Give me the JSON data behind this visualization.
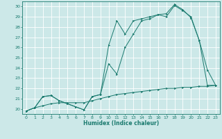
{
  "title": "",
  "xlabel": "Humidex (Indice chaleur)",
  "ylabel": "",
  "bg_color": "#cce8e8",
  "line_color": "#1a7a6e",
  "grid_color": "#ffffff",
  "xlim": [
    -0.5,
    23.5
  ],
  "ylim": [
    19.5,
    30.5
  ],
  "xticks": [
    0,
    1,
    2,
    3,
    4,
    5,
    6,
    7,
    8,
    9,
    10,
    11,
    12,
    13,
    14,
    15,
    16,
    17,
    18,
    19,
    20,
    21,
    22,
    23
  ],
  "yticks": [
    20,
    21,
    22,
    23,
    24,
    25,
    26,
    27,
    28,
    29,
    30
  ],
  "series1": {
    "x": [
      0,
      1,
      2,
      3,
      4,
      5,
      6,
      7,
      8,
      9,
      10,
      11,
      12,
      13,
      14,
      15,
      16,
      17,
      18,
      19,
      20,
      21,
      22,
      23
    ],
    "y": [
      19.8,
      20.1,
      21.2,
      21.3,
      20.8,
      20.5,
      20.2,
      19.9,
      21.2,
      21.4,
      26.2,
      28.6,
      27.3,
      28.6,
      28.8,
      29.0,
      29.2,
      29.0,
      30.1,
      29.6,
      29.0,
      26.7,
      23.8,
      22.3
    ]
  },
  "series2": {
    "x": [
      0,
      1,
      2,
      3,
      4,
      5,
      6,
      7,
      8,
      9,
      10,
      11,
      12,
      13,
      14,
      15,
      16,
      17,
      18,
      19,
      20,
      21,
      22,
      23
    ],
    "y": [
      19.8,
      20.1,
      21.2,
      21.3,
      20.8,
      20.5,
      20.2,
      19.9,
      21.2,
      21.4,
      24.4,
      23.4,
      26.0,
      27.3,
      28.6,
      28.8,
      29.2,
      29.3,
      30.2,
      29.7,
      28.9,
      26.7,
      22.3,
      22.3
    ]
  },
  "series3": {
    "x": [
      0,
      1,
      2,
      3,
      4,
      5,
      6,
      7,
      8,
      9,
      10,
      11,
      12,
      13,
      14,
      15,
      16,
      17,
      18,
      19,
      20,
      21,
      22,
      23
    ],
    "y": [
      19.8,
      20.1,
      20.3,
      20.5,
      20.6,
      20.6,
      20.6,
      20.6,
      20.8,
      21.0,
      21.2,
      21.4,
      21.5,
      21.6,
      21.7,
      21.8,
      21.9,
      22.0,
      22.0,
      22.1,
      22.1,
      22.2,
      22.2,
      22.3
    ]
  },
  "figsize": [
    3.2,
    2.0
  ],
  "dpi": 100
}
